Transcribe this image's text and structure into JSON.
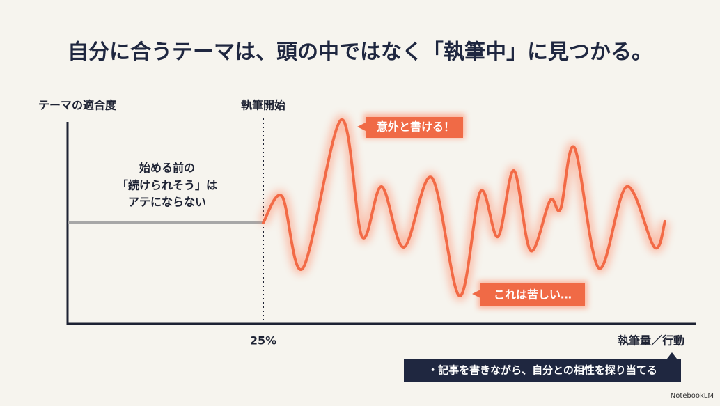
{
  "header": {
    "title": "自分に合うテーマは、頭の中ではなく「執筆中」に見つかる。"
  },
  "axes": {
    "y_label": "テーマの適合度",
    "x_label": "執筆量／行動",
    "start_label": "執筆開始",
    "start_position": "25%"
  },
  "note": {
    "lines": [
      "始める前の",
      "「続けられそう」は",
      "アテにならない"
    ]
  },
  "callouts": [
    "意外と書ける！",
    "これは苦しい…"
  ],
  "footer": {
    "text": "・記事を書きながら、自分との相性を探り当てる",
    "watermark": "NotebookLM"
  }
}
